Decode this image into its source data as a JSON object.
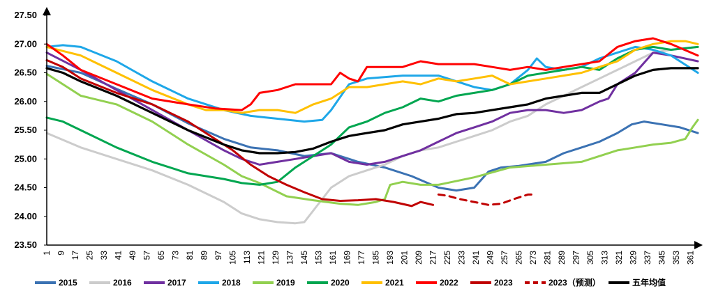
{
  "chart_data": {
    "type": "line",
    "title": "",
    "xlabel": "",
    "ylabel": "",
    "xlim": [
      1,
      365
    ],
    "ylim": [
      23.5,
      27.5
    ],
    "grid": false,
    "legend_position": "bottom",
    "y_ticks": [
      "27.50",
      "27.00",
      "26.50",
      "26.00",
      "25.50",
      "25.00",
      "24.50",
      "24.00",
      "23.50"
    ],
    "x_ticks": [
      "1",
      "9",
      "17",
      "25",
      "33",
      "41",
      "49",
      "57",
      "65",
      "73",
      "81",
      "89",
      "97",
      "105",
      "113",
      "121",
      "129",
      "137",
      "145",
      "153",
      "161",
      "169",
      "177",
      "185",
      "193",
      "201",
      "209",
      "217",
      "225",
      "233",
      "241",
      "249",
      "257",
      "265",
      "273",
      "281",
      "289",
      "297",
      "305",
      "313",
      "321",
      "329",
      "337",
      "345",
      "353",
      "361"
    ],
    "series": [
      {
        "name": "2015",
        "color": "#3b72b3",
        "dash": false,
        "x": [
          1,
          20,
          40,
          60,
          80,
          100,
          115,
          130,
          145,
          160,
          175,
          190,
          205,
          220,
          230,
          240,
          248,
          255,
          265,
          280,
          290,
          300,
          310,
          320,
          328,
          335,
          345,
          355,
          365
        ],
        "y": [
          26.62,
          26.5,
          26.22,
          25.95,
          25.62,
          25.35,
          25.2,
          25.15,
          25.05,
          25.1,
          24.95,
          24.85,
          24.7,
          24.5,
          24.45,
          24.5,
          24.78,
          24.85,
          24.88,
          24.95,
          25.1,
          25.2,
          25.3,
          25.45,
          25.6,
          25.65,
          25.6,
          25.55,
          25.45
        ]
      },
      {
        "name": "2016",
        "color": "#cccccc",
        "dash": false,
        "x": [
          1,
          20,
          40,
          60,
          80,
          100,
          110,
          120,
          130,
          140,
          145,
          150,
          160,
          170,
          180,
          190,
          200,
          210,
          220,
          230,
          240,
          250,
          260,
          270,
          280,
          290,
          300,
          310,
          320,
          330,
          340,
          350,
          365
        ],
        "y": [
          25.45,
          25.2,
          25.0,
          24.8,
          24.55,
          24.25,
          24.05,
          23.95,
          23.9,
          23.88,
          23.9,
          24.1,
          24.5,
          24.7,
          24.8,
          24.9,
          25.05,
          25.15,
          25.2,
          25.3,
          25.4,
          25.5,
          25.65,
          25.75,
          25.95,
          26.1,
          26.25,
          26.4,
          26.55,
          26.7,
          26.85,
          26.9,
          26.95
        ]
      },
      {
        "name": "2017",
        "color": "#7030a0",
        "dash": false,
        "x": [
          1,
          20,
          40,
          60,
          80,
          100,
          110,
          120,
          130,
          140,
          150,
          160,
          170,
          180,
          190,
          200,
          210,
          220,
          230,
          240,
          250,
          260,
          270,
          280,
          290,
          300,
          310,
          315,
          320,
          330,
          340,
          350,
          365
        ],
        "y": [
          26.85,
          26.55,
          26.2,
          25.85,
          25.5,
          25.15,
          25.0,
          24.9,
          24.95,
          25.0,
          25.05,
          25.1,
          24.95,
          24.9,
          24.95,
          25.05,
          25.15,
          25.3,
          25.45,
          25.55,
          25.65,
          25.8,
          25.85,
          25.85,
          25.8,
          25.85,
          26.0,
          26.05,
          26.3,
          26.5,
          26.85,
          26.8,
          26.7
        ]
      },
      {
        "name": "2018",
        "color": "#1ea7e8",
        "dash": false,
        "x": [
          1,
          10,
          20,
          40,
          60,
          80,
          100,
          115,
          130,
          145,
          155,
          160,
          170,
          180,
          200,
          220,
          240,
          250,
          260,
          270,
          275,
          280,
          290,
          300,
          310,
          320,
          330,
          340,
          350,
          365
        ],
        "y": [
          26.95,
          26.98,
          26.95,
          26.7,
          26.35,
          26.05,
          25.85,
          25.75,
          25.7,
          25.65,
          25.68,
          25.85,
          26.3,
          26.4,
          26.45,
          26.45,
          26.25,
          26.2,
          26.3,
          26.55,
          26.75,
          26.6,
          26.55,
          26.6,
          26.75,
          26.85,
          26.95,
          26.9,
          26.8,
          26.5
        ]
      },
      {
        "name": "2019",
        "color": "#92d050",
        "dash": false,
        "x": [
          1,
          10,
          20,
          40,
          60,
          80,
          100,
          110,
          120,
          135,
          150,
          165,
          175,
          185,
          190,
          193,
          200,
          210,
          220,
          240,
          260,
          280,
          300,
          320,
          330,
          340,
          350,
          358,
          362,
          365
        ],
        "y": [
          26.48,
          26.3,
          26.1,
          25.95,
          25.65,
          25.25,
          24.9,
          24.7,
          24.58,
          24.35,
          24.28,
          24.22,
          24.2,
          24.25,
          24.3,
          24.55,
          24.6,
          24.55,
          24.55,
          24.68,
          24.85,
          24.9,
          24.95,
          25.15,
          25.2,
          25.25,
          25.28,
          25.35,
          25.55,
          25.68
        ]
      },
      {
        "name": "2020",
        "color": "#00a650",
        "dash": false,
        "x": [
          1,
          10,
          20,
          40,
          60,
          80,
          100,
          110,
          120,
          130,
          140,
          150,
          160,
          170,
          180,
          190,
          200,
          210,
          220,
          230,
          240,
          250,
          260,
          270,
          280,
          290,
          300,
          310,
          320,
          330,
          340,
          350,
          365
        ],
        "y": [
          25.72,
          25.65,
          25.5,
          25.2,
          24.95,
          24.75,
          24.65,
          24.58,
          24.55,
          24.6,
          24.85,
          25.05,
          25.25,
          25.55,
          25.65,
          25.8,
          25.9,
          26.05,
          26.0,
          26.1,
          26.15,
          26.2,
          26.3,
          26.45,
          26.5,
          26.55,
          26.6,
          26.55,
          26.75,
          26.9,
          26.95,
          26.9,
          26.95
        ]
      },
      {
        "name": "2021",
        "color": "#ffc000",
        "dash": false,
        "x": [
          1,
          20,
          40,
          60,
          80,
          90,
          100,
          110,
          120,
          130,
          140,
          150,
          160,
          170,
          180,
          190,
          200,
          210,
          220,
          230,
          240,
          250,
          260,
          270,
          280,
          290,
          300,
          310,
          320,
          330,
          340,
          350,
          358,
          365
        ],
        "y": [
          26.95,
          26.8,
          26.5,
          26.2,
          25.95,
          25.85,
          25.85,
          25.8,
          25.85,
          25.85,
          25.8,
          25.95,
          26.05,
          26.25,
          26.25,
          26.3,
          26.35,
          26.3,
          26.4,
          26.35,
          26.4,
          26.45,
          26.3,
          26.35,
          26.4,
          26.45,
          26.5,
          26.6,
          26.7,
          26.9,
          27.0,
          27.05,
          27.05,
          27.0
        ]
      },
      {
        "name": "2022",
        "color": "#ff0000",
        "dash": false,
        "x": [
          1,
          10,
          20,
          40,
          60,
          80,
          95,
          110,
          115,
          120,
          130,
          140,
          150,
          160,
          165,
          170,
          175,
          180,
          190,
          200,
          210,
          220,
          230,
          240,
          250,
          260,
          270,
          280,
          290,
          300,
          310,
          320,
          330,
          340,
          350,
          365
        ],
        "y": [
          27.0,
          26.8,
          26.55,
          26.3,
          26.05,
          25.95,
          25.88,
          25.85,
          25.95,
          26.15,
          26.2,
          26.3,
          26.3,
          26.3,
          26.5,
          26.4,
          26.35,
          26.6,
          26.6,
          26.6,
          26.7,
          26.65,
          26.65,
          26.65,
          26.6,
          26.55,
          26.6,
          26.55,
          26.6,
          26.65,
          26.7,
          26.95,
          27.05,
          27.1,
          27.0,
          26.8
        ]
      },
      {
        "name": "2023",
        "color": "#c00000",
        "dash": false,
        "x": [
          1,
          10,
          20,
          40,
          60,
          80,
          95,
          105,
          115,
          125,
          135,
          145,
          155,
          165,
          175,
          185,
          195,
          205,
          210,
          217
        ],
        "y": [
          26.72,
          26.6,
          26.4,
          26.15,
          25.95,
          25.65,
          25.35,
          25.15,
          24.9,
          24.7,
          24.55,
          24.42,
          24.3,
          24.27,
          24.28,
          24.3,
          24.25,
          24.18,
          24.25,
          24.2
        ]
      },
      {
        "name": "2023（预测）",
        "color": "#c00000",
        "dash": true,
        "x": [
          220,
          225,
          232,
          240,
          248,
          255,
          262,
          270,
          273
        ],
        "y": [
          24.38,
          24.36,
          24.3,
          24.25,
          24.2,
          24.22,
          24.3,
          24.38,
          24.38
        ]
      },
      {
        "name": "五年均值",
        "color": "#000000",
        "dash": false,
        "width": 3.2,
        "x": [
          1,
          10,
          20,
          40,
          60,
          80,
          100,
          110,
          120,
          130,
          140,
          150,
          160,
          170,
          180,
          190,
          200,
          210,
          220,
          230,
          240,
          250,
          260,
          270,
          280,
          290,
          300,
          310,
          320,
          330,
          340,
          350,
          365
        ],
        "y": [
          26.58,
          26.5,
          26.35,
          26.1,
          25.8,
          25.5,
          25.25,
          25.15,
          25.1,
          25.1,
          25.12,
          25.18,
          25.3,
          25.4,
          25.45,
          25.5,
          25.6,
          25.65,
          25.7,
          25.78,
          25.8,
          25.85,
          25.9,
          25.95,
          26.05,
          26.1,
          26.15,
          26.15,
          26.3,
          26.45,
          26.55,
          26.58,
          26.58
        ]
      }
    ]
  }
}
